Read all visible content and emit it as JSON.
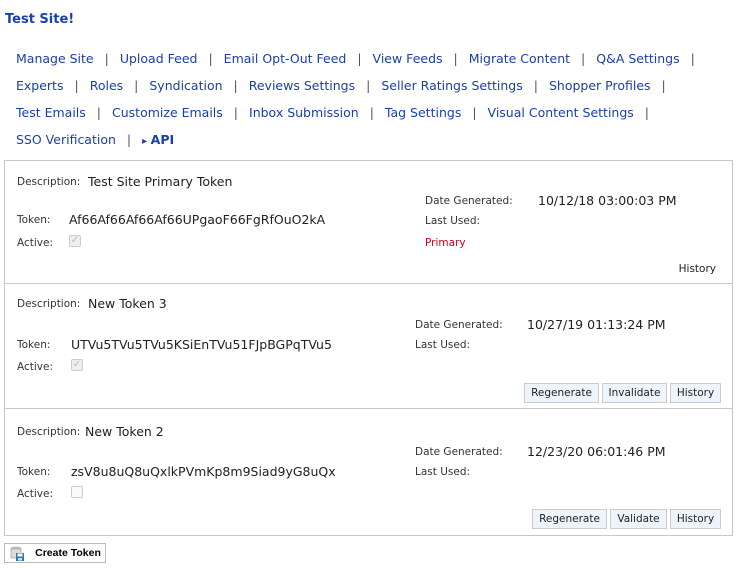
{
  "site_title": "Test Site!",
  "nav": [
    "Manage Site",
    "Upload Feed",
    "Email Opt-Out Feed",
    "View Feeds",
    "Migrate Content",
    "Q&A Settings",
    "Experts",
    "Roles",
    "Syndication",
    "Reviews Settings",
    "Seller Ratings Settings",
    "Shopper Profiles",
    "Test Emails",
    "Customize Emails",
    "Inbox Submission",
    "Tag Settings",
    "Visual Content Settings",
    "SSO Verification"
  ],
  "nav_active": "API",
  "labels": {
    "description": "Description:",
    "token": "Token:",
    "active": "Active:",
    "date_generated": "Date Generated:",
    "last_used": "Last Used:"
  },
  "tokens": [
    {
      "description": "Test Site Primary Token",
      "token": "Af66Af66Af66Af66UPgaoF66FgRfOuO2kA",
      "active": true,
      "date_generated": "10/12/18 03:00:03 PM",
      "last_used": "",
      "status": "Primary",
      "buttons": [
        "History"
      ]
    },
    {
      "description": "New Token 3",
      "token": "UTVu5TVu5TVu5KSiEnTVu51FJpBGPqTVu5",
      "active": true,
      "date_generated": "10/27/19 01:13:24 PM",
      "last_used": "",
      "buttons": [
        "Regenerate",
        "Invalidate",
        "History"
      ]
    },
    {
      "description": "New Token 2",
      "token": "zsV8u8uQ8uQxlkPVmKp8m9Siad9yG8uQx",
      "active": false,
      "date_generated": "12/23/20 06:01:46 PM",
      "last_used": "",
      "buttons": [
        "Regenerate",
        "Validate",
        "History"
      ]
    }
  ],
  "create_button": "Create Token",
  "colors": {
    "link": "#1a3fa8",
    "primary_status": "#d0021b",
    "button_bg": "#eef4fb"
  }
}
